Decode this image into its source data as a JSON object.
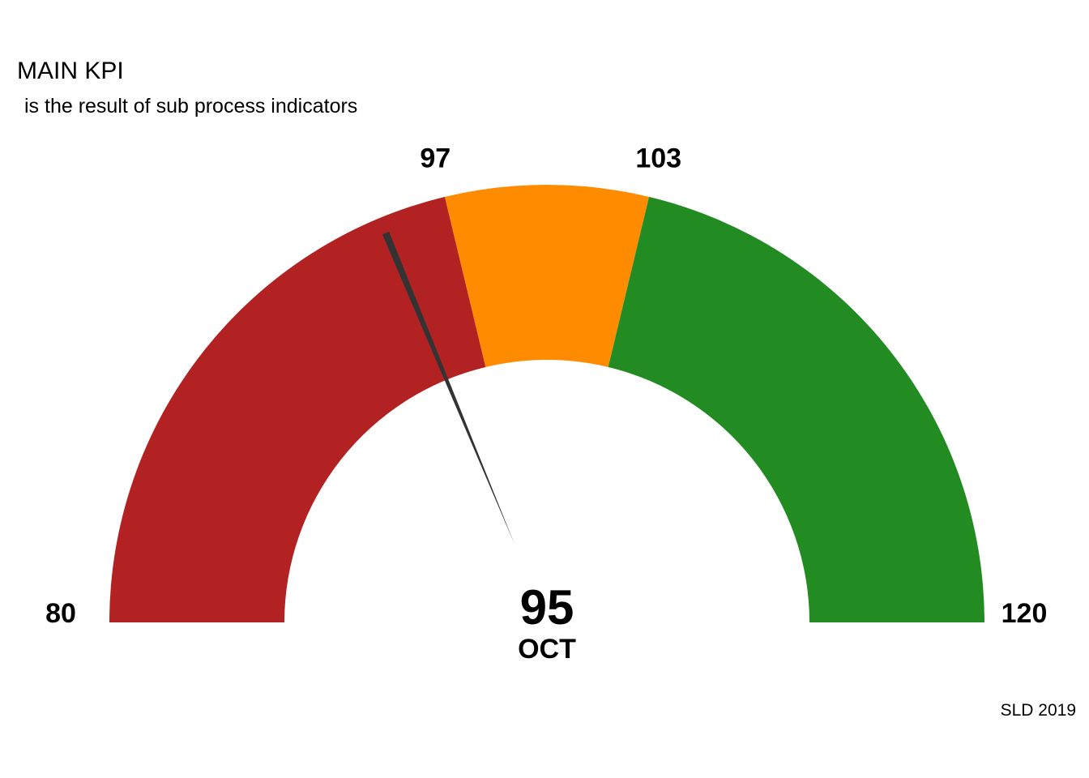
{
  "chart_data": {
    "type": "gauge",
    "title": "MAIN KPI",
    "subtitle": "is the result of sub process indicators",
    "min": 80,
    "max": 120,
    "value": 95,
    "period": "OCT",
    "bands": [
      {
        "from": 80,
        "to": 97,
        "color": "#B22222"
      },
      {
        "from": 97,
        "to": 103,
        "color": "#FF8C00"
      },
      {
        "from": 103,
        "to": 120,
        "color": "#228B22"
      }
    ],
    "tick_labels": [
      "80",
      "97",
      "103",
      "120"
    ],
    "needle_color": "#333333",
    "caption": "SLD 2019"
  }
}
